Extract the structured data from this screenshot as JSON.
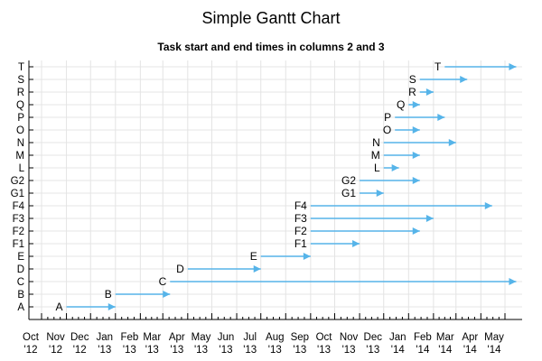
{
  "chart_data": {
    "type": "gantt",
    "title": "Simple Gantt Chart",
    "subtitle": "Task start and end times in columns 2 and 3",
    "bar_color": "#56b4e9",
    "grid": true,
    "x_ticks": [
      {
        "month": "Oct",
        "year": "'12",
        "date": "2012-10-01"
      },
      {
        "month": "Nov",
        "year": "'12",
        "date": "2012-11-01"
      },
      {
        "month": "Dec",
        "year": "'12",
        "date": "2012-12-01"
      },
      {
        "month": "Jan",
        "year": "'13",
        "date": "2013-01-01"
      },
      {
        "month": "Feb",
        "year": "'13",
        "date": "2013-02-01"
      },
      {
        "month": "Mar",
        "year": "'13",
        "date": "2013-03-01"
      },
      {
        "month": "Apr",
        "year": "'13",
        "date": "2013-04-01"
      },
      {
        "month": "May",
        "year": "'13",
        "date": "2013-05-01"
      },
      {
        "month": "Jun",
        "year": "'13",
        "date": "2013-06-01"
      },
      {
        "month": "Jul",
        "year": "'13",
        "date": "2013-07-01"
      },
      {
        "month": "Aug",
        "year": "'13",
        "date": "2013-08-01"
      },
      {
        "month": "Sep",
        "year": "'13",
        "date": "2013-09-01"
      },
      {
        "month": "Oct",
        "year": "'13",
        "date": "2013-10-01"
      },
      {
        "month": "Nov",
        "year": "'13",
        "date": "2013-11-01"
      },
      {
        "month": "Dec",
        "year": "'13",
        "date": "2013-12-01"
      },
      {
        "month": "Jan",
        "year": "'14",
        "date": "2014-01-01"
      },
      {
        "month": "Feb",
        "year": "'14",
        "date": "2014-02-01"
      },
      {
        "month": "Mar",
        "year": "'14",
        "date": "2014-03-01"
      },
      {
        "month": "Apr",
        "year": "'14",
        "date": "2014-04-01"
      },
      {
        "month": "May",
        "year": "'14",
        "date": "2014-05-01"
      }
    ],
    "tasks": [
      {
        "name": "A",
        "start": "2012-11-01",
        "end": "2013-01-01"
      },
      {
        "name": "B",
        "start": "2013-01-01",
        "end": "2013-03-10"
      },
      {
        "name": "C",
        "start": "2013-03-10",
        "end": "2014-05-15"
      },
      {
        "name": "D",
        "start": "2013-04-01",
        "end": "2013-07-01"
      },
      {
        "name": "E",
        "start": "2013-07-01",
        "end": "2013-09-01"
      },
      {
        "name": "F1",
        "start": "2013-09-01",
        "end": "2013-11-01"
      },
      {
        "name": "F2",
        "start": "2013-09-01",
        "end": "2014-01-15"
      },
      {
        "name": "F3",
        "start": "2013-09-01",
        "end": "2014-02-01"
      },
      {
        "name": "F4",
        "start": "2013-09-01",
        "end": "2014-04-15"
      },
      {
        "name": "G1",
        "start": "2013-11-01",
        "end": "2013-12-01"
      },
      {
        "name": "G2",
        "start": "2013-11-01",
        "end": "2014-01-15"
      },
      {
        "name": "L",
        "start": "2013-12-01",
        "end": "2013-12-20"
      },
      {
        "name": "M",
        "start": "2013-12-01",
        "end": "2014-01-15"
      },
      {
        "name": "N",
        "start": "2013-12-01",
        "end": "2014-03-01"
      },
      {
        "name": "O",
        "start": "2013-12-15",
        "end": "2014-01-15"
      },
      {
        "name": "P",
        "start": "2013-12-15",
        "end": "2014-02-15"
      },
      {
        "name": "Q",
        "start": "2014-01-01",
        "end": "2014-01-15"
      },
      {
        "name": "R",
        "start": "2014-01-15",
        "end": "2014-02-01"
      },
      {
        "name": "S",
        "start": "2014-01-15",
        "end": "2014-03-15"
      },
      {
        "name": "T",
        "start": "2014-02-15",
        "end": "2014-05-15"
      }
    ]
  }
}
